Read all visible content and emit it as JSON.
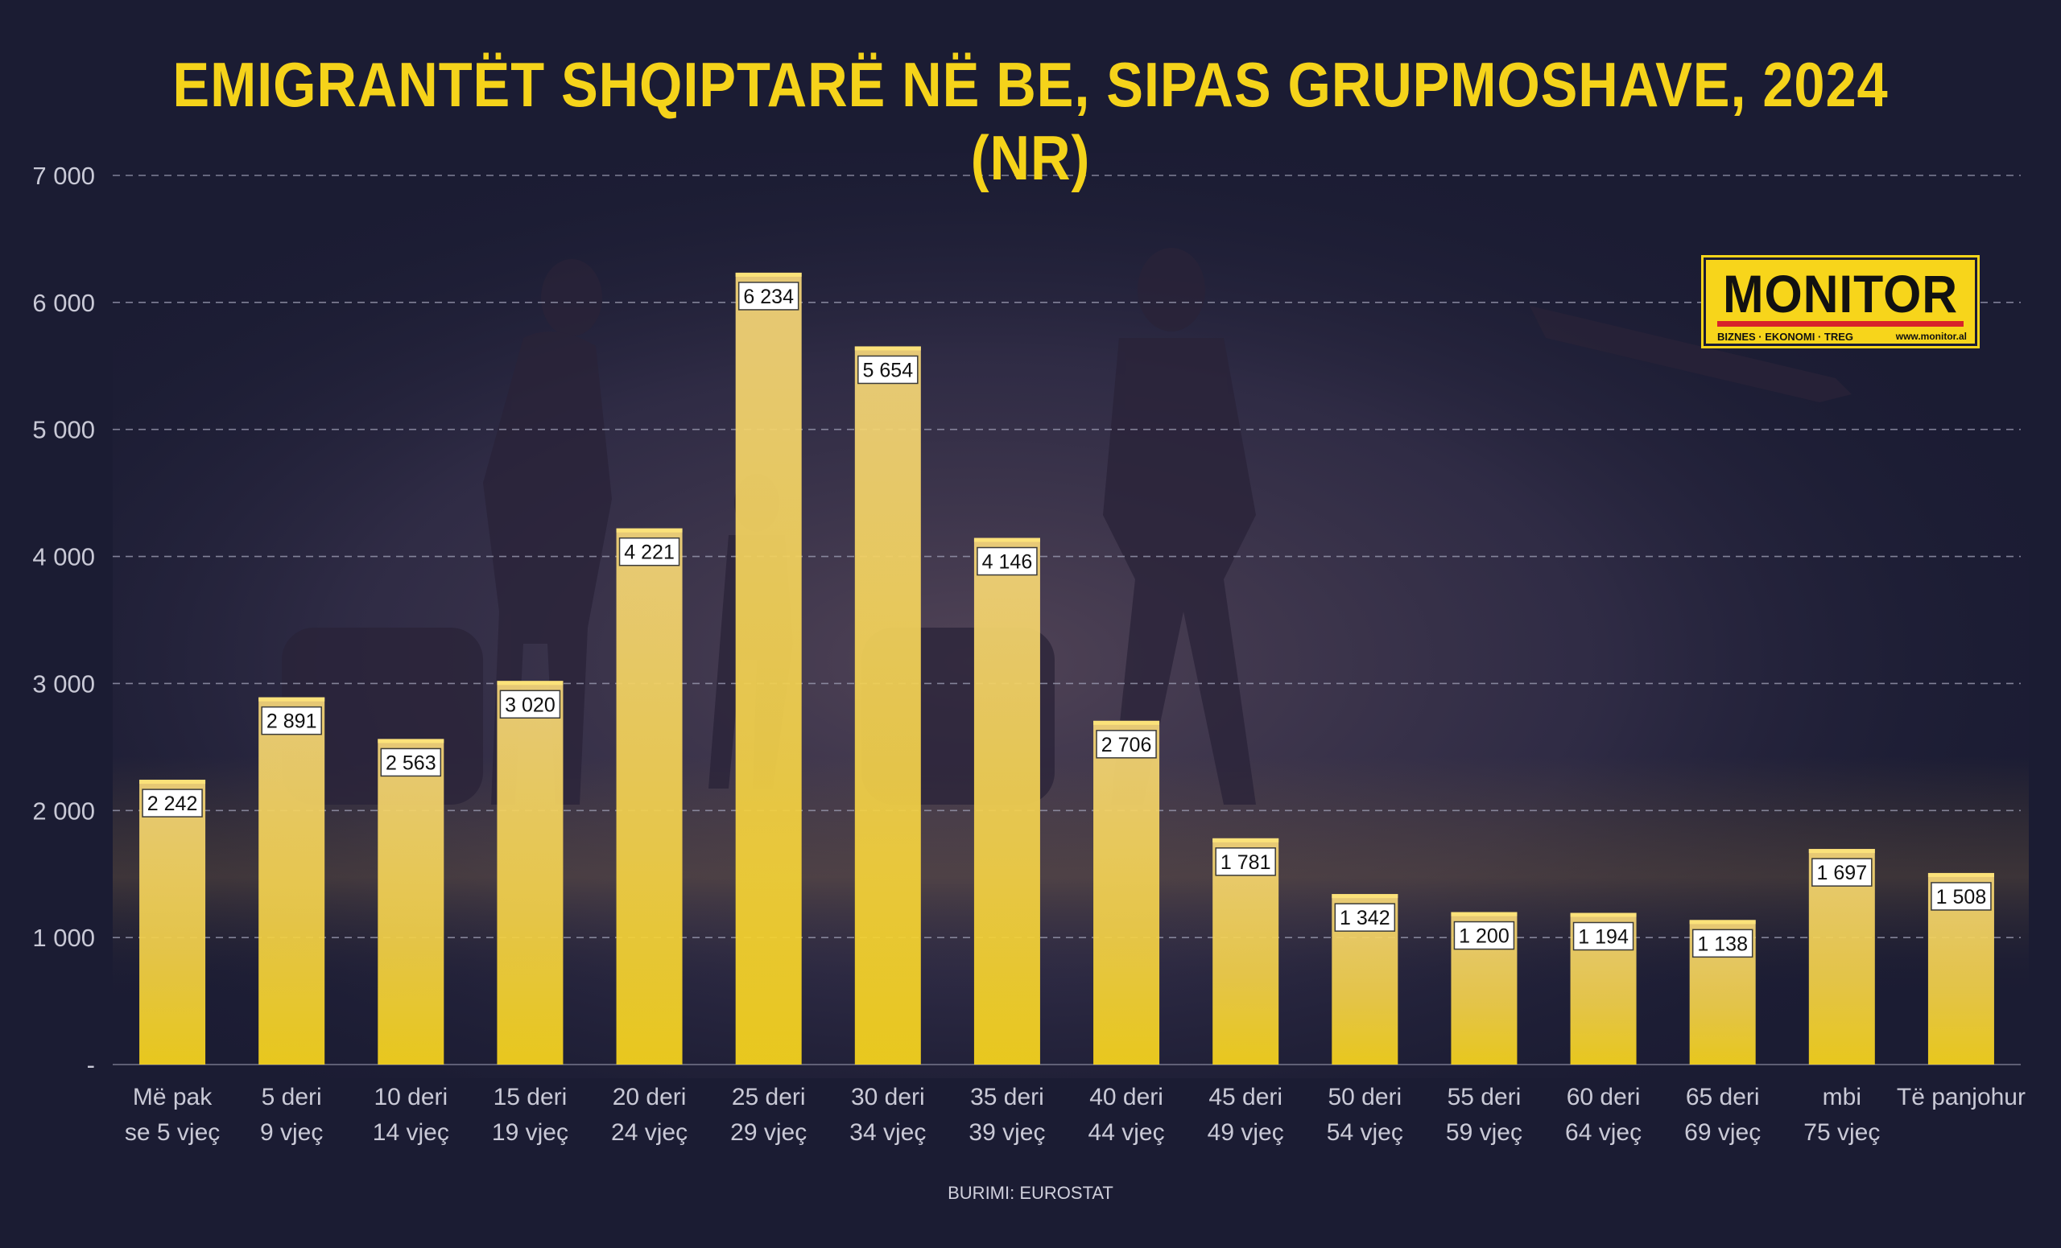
{
  "chart_data": {
    "type": "bar",
    "title": "EMIGRANTËT SHQIPTARË NË BE, SIPAS GRUPMOSHAVE, 2024 (NR)",
    "categories": [
      [
        "Më pak",
        "se 5 vjeç"
      ],
      [
        "5 deri",
        "9 vjeç"
      ],
      [
        "10 deri",
        "14 vjeç"
      ],
      [
        "15 deri",
        "19 vjeç"
      ],
      [
        "20 deri",
        "24 vjeç"
      ],
      [
        "25 deri",
        "29 vjeç"
      ],
      [
        "30 deri",
        "34 vjeç"
      ],
      [
        "35 deri",
        "39 vjeç"
      ],
      [
        "40 deri",
        "44 vjeç"
      ],
      [
        "45 deri",
        "49 vjeç"
      ],
      [
        "50 deri",
        "54 vjeç"
      ],
      [
        "55 deri",
        "59 vjeç"
      ],
      [
        "60 deri",
        "64 vjeç"
      ],
      [
        "65 deri",
        "69 vjeç"
      ],
      [
        "mbi",
        "75 vjeç"
      ],
      [
        "Të panjohur"
      ]
    ],
    "values": [
      2242,
      2891,
      2563,
      3020,
      4221,
      6234,
      5654,
      4146,
      2706,
      1781,
      1342,
      1200,
      1194,
      1138,
      1697,
      1508
    ],
    "value_labels": [
      "2 242",
      "2 891",
      "2 563",
      "3 020",
      "4 221",
      "6 234",
      "5 654",
      "4 146",
      "2 706",
      "1 781",
      "1 342",
      "1 200",
      "1 194",
      "1 138",
      "1 697",
      "1 508"
    ],
    "y_ticks": [
      0,
      1000,
      2000,
      3000,
      4000,
      5000,
      6000,
      7000
    ],
    "y_tick_labels": [
      "-",
      "1 000",
      "2 000",
      "3 000",
      "4 000",
      "5 000",
      "6 000",
      "7 000"
    ],
    "ylim": [
      0,
      7000
    ],
    "grid": true,
    "bar_color": "#f6d12a",
    "xlabel": "",
    "ylabel": ""
  },
  "source": "BURIMI: EUROSTAT",
  "logo": {
    "name": "MONITOR",
    "tagline": "BIZNES · EKONOMI · TREG",
    "website": "www.monitor.al"
  },
  "colors": {
    "background": "#1b1c33",
    "title": "#f5d31a",
    "grid": "#9a9ab0",
    "axis_text": "#c9c9d6",
    "brand_red": "#d8232a"
  }
}
